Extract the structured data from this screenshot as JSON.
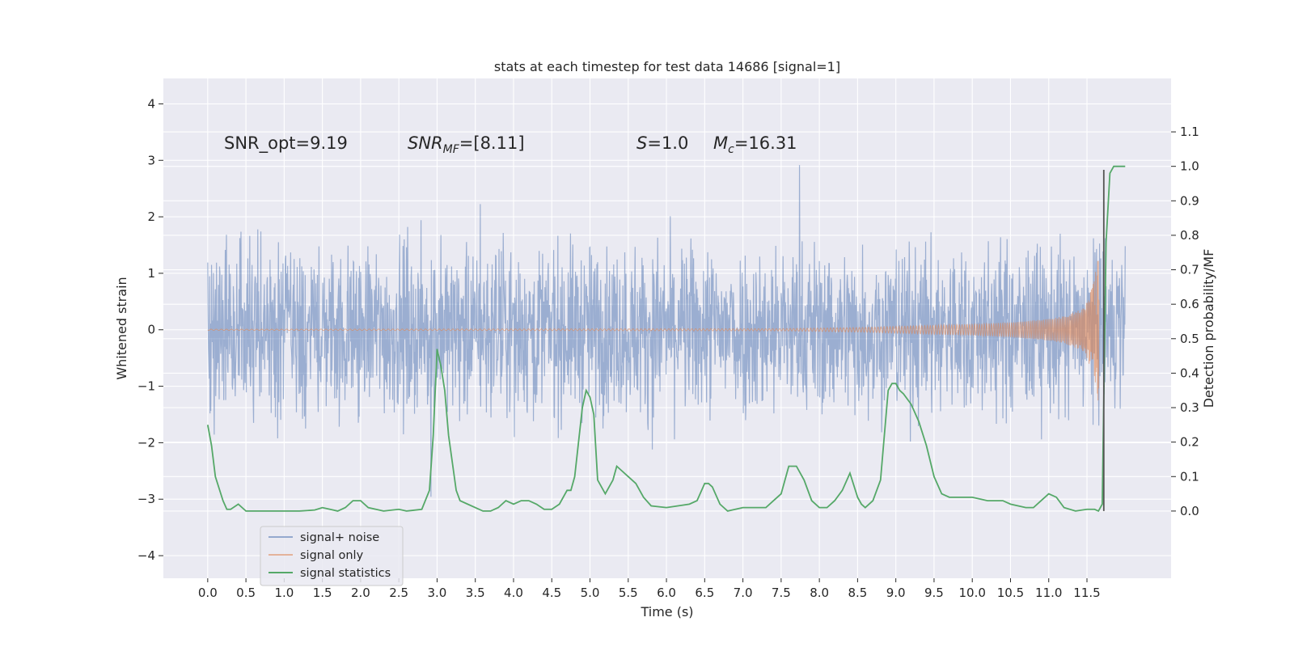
{
  "chart_data": {
    "type": "line",
    "title": "stats at each timestep for test data 14686 [signal=1]",
    "xlabel": "Time (s)",
    "ylabel": "Whitened strain",
    "y2label": "Detection probability/MF",
    "xlim": [
      -0.58,
      12.6
    ],
    "ylim": [
      -4.4,
      4.45
    ],
    "y2lim": [
      -0.195,
      1.255
    ],
    "xticks": [
      0.0,
      0.5,
      1.0,
      1.5,
      2.0,
      2.5,
      3.0,
      3.5,
      4.0,
      4.5,
      5.0,
      5.5,
      6.0,
      6.5,
      7.0,
      7.5,
      8.0,
      8.5,
      9.0,
      9.5,
      10.0,
      10.5,
      11.0,
      11.5
    ],
    "xtick_labels": [
      "0.0",
      "0.5",
      "1.0",
      "1.5",
      "2.0",
      "2.5",
      "3.0",
      "3.5",
      "4.0",
      "4.5",
      "5.0",
      "5.5",
      "6.0",
      "6.5",
      "7.0",
      "7.5",
      "8.0",
      "8.5",
      "9.0",
      "9.5",
      "10.0",
      "10.5",
      "11.0",
      "11.5"
    ],
    "yticks": [
      4,
      3,
      2,
      1,
      0,
      -1,
      -2,
      -3,
      -4
    ],
    "ytick_labels": [
      "4",
      "3",
      "2",
      "1",
      "0",
      "−1",
      "−2",
      "−3",
      "−4"
    ],
    "y2ticks": [
      1.1,
      1.0,
      0.9,
      0.8,
      0.7,
      0.6,
      0.5,
      0.4,
      0.3,
      0.2,
      0.1,
      0.0
    ],
    "y2tick_labels": [
      "1.1",
      "1.0",
      "0.9",
      "0.8",
      "0.7",
      "0.6",
      "0.5",
      "0.4",
      "0.3",
      "0.2",
      "0.1",
      "0.0"
    ],
    "grid": true,
    "background": "#eaeaf2",
    "legend_position": "lower-left",
    "annotations": [
      {
        "text": "SNR_opt=9.19"
      },
      {
        "text": "SNR",
        "sub": "MF",
        "suffix": "=[8.11]",
        "italic": true
      },
      {
        "text": "S",
        "sub": "",
        "suffix": "=1.0",
        "italic": true
      },
      {
        "text": "M",
        "sub": "c",
        "suffix": "=16.31",
        "italic": true
      }
    ],
    "series": [
      {
        "name": "signal+ noise",
        "axis": "left",
        "color": "#4c72b0",
        "opacity": 0.5,
        "style": "noisy strain, amplitude roughly ±2.5 with spikes to about 4.1 and -3.9",
        "t_range": [
          0.0,
          12.0
        ]
      },
      {
        "name": "signal only",
        "axis": "left",
        "color": "#dd8452",
        "opacity": 0.5,
        "style": "chirp, growing from ~0 amplitude to peak ~1.4 at 11.65 s",
        "envelope": {
          "t": [
            0.0,
            7.5,
            8.5,
            9.5,
            10.0,
            10.5,
            11.0,
            11.2,
            11.4,
            11.5,
            11.58,
            11.62,
            11.66
          ],
          "amp": [
            0.01,
            0.02,
            0.04,
            0.08,
            0.1,
            0.13,
            0.19,
            0.24,
            0.35,
            0.5,
            0.8,
            1.1,
            1.45
          ]
        }
      },
      {
        "name": "signal statistics",
        "axis": "right",
        "color": "#55a868",
        "x": [
          0.0,
          0.05,
          0.1,
          0.2,
          0.25,
          0.3,
          0.4,
          0.5,
          0.6,
          0.8,
          1.0,
          1.2,
          1.4,
          1.5,
          1.6,
          1.7,
          1.8,
          1.9,
          2.0,
          2.1,
          2.3,
          2.5,
          2.6,
          2.8,
          2.9,
          2.95,
          3.0,
          3.05,
          3.1,
          3.15,
          3.25,
          3.3,
          3.4,
          3.6,
          3.7,
          3.8,
          3.9,
          4.0,
          4.1,
          4.2,
          4.3,
          4.4,
          4.5,
          4.6,
          4.7,
          4.75,
          4.8,
          4.9,
          4.95,
          5.0,
          5.05,
          5.1,
          5.2,
          5.3,
          5.35,
          5.4,
          5.5,
          5.6,
          5.7,
          5.8,
          6.0,
          6.3,
          6.4,
          6.5,
          6.55,
          6.6,
          6.7,
          6.8,
          7.0,
          7.3,
          7.4,
          7.5,
          7.6,
          7.7,
          7.8,
          7.9,
          8.0,
          8.1,
          8.2,
          8.3,
          8.4,
          8.5,
          8.55,
          8.6,
          8.7,
          8.8,
          8.9,
          8.95,
          9.0,
          9.05,
          9.1,
          9.2,
          9.3,
          9.4,
          9.5,
          9.6,
          9.7,
          10.0,
          10.2,
          10.4,
          10.5,
          10.6,
          10.7,
          10.8,
          10.9,
          11.0,
          11.1,
          11.2,
          11.35,
          11.5,
          11.6,
          11.65,
          11.7,
          11.75,
          11.8,
          11.85,
          11.9,
          11.95,
          12.0
        ],
        "y": [
          0.25,
          0.19,
          0.1,
          0.03,
          0.005,
          0.005,
          0.02,
          0.0,
          0.0,
          0.0,
          0.0,
          0.0,
          0.003,
          0.01,
          0.005,
          0.0,
          0.01,
          0.03,
          0.03,
          0.01,
          0.0,
          0.005,
          0.0,
          0.005,
          0.06,
          0.22,
          0.47,
          0.42,
          0.35,
          0.22,
          0.06,
          0.03,
          0.02,
          0.0,
          0.0,
          0.01,
          0.03,
          0.02,
          0.03,
          0.03,
          0.02,
          0.005,
          0.005,
          0.02,
          0.06,
          0.06,
          0.1,
          0.3,
          0.35,
          0.33,
          0.28,
          0.09,
          0.05,
          0.09,
          0.13,
          0.12,
          0.1,
          0.08,
          0.04,
          0.015,
          0.01,
          0.02,
          0.03,
          0.08,
          0.08,
          0.07,
          0.02,
          0.0,
          0.01,
          0.01,
          0.03,
          0.05,
          0.13,
          0.13,
          0.09,
          0.03,
          0.01,
          0.01,
          0.03,
          0.06,
          0.11,
          0.04,
          0.02,
          0.01,
          0.03,
          0.09,
          0.35,
          0.37,
          0.37,
          0.35,
          0.34,
          0.31,
          0.26,
          0.19,
          0.1,
          0.05,
          0.04,
          0.04,
          0.03,
          0.03,
          0.02,
          0.015,
          0.01,
          0.01,
          0.03,
          0.05,
          0.04,
          0.01,
          0.0,
          0.005,
          0.005,
          0.0,
          0.02,
          0.78,
          0.98,
          1.0,
          1.0,
          1.0,
          1.0
        ]
      },
      {
        "name": "",
        "axis": "right",
        "color": "#555555",
        "style": "vertical marker line",
        "x": [
          11.72,
          11.72
        ],
        "y": [
          0.0,
          0.99
        ]
      }
    ]
  }
}
